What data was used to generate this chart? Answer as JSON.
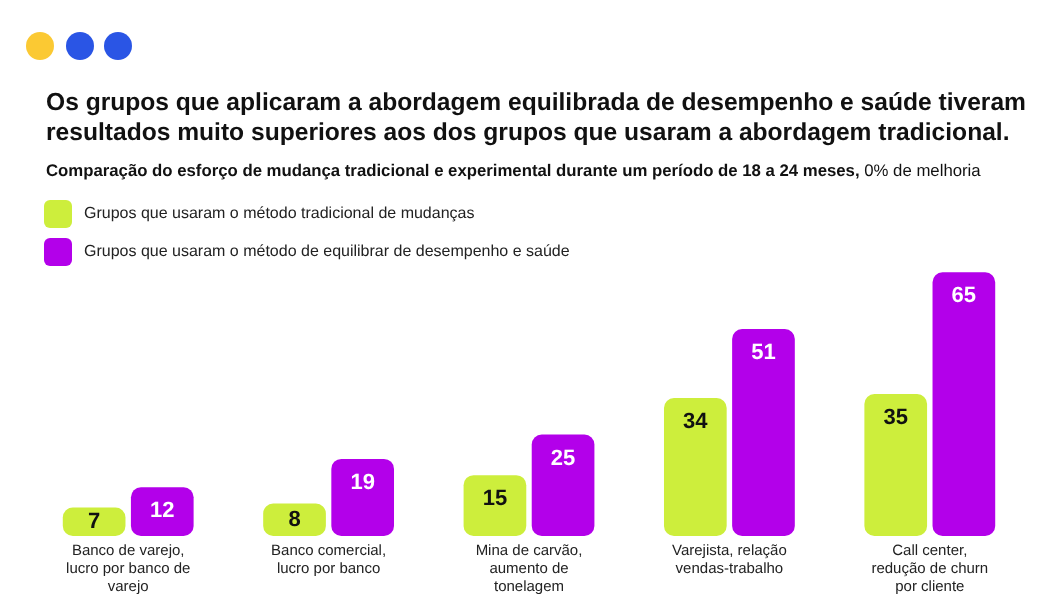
{
  "chart_data": {
    "type": "bar",
    "title": "Os grupos que aplicaram a abordagem equilibrada de desempenho e saúde tiveram resultados muito superiores aos dos grupos que usaram a abordagem tradicional.",
    "subtitle": "Comparação do esforço de mudança tradicional e experimental durante um período de 18 a 24 meses, 0% de melhoria",
    "categories": [
      "Banco de varejo, lucro por banco de varejo",
      "Banco comercial, lucro por banco",
      "Mina de carvão, aumento de tonelagem",
      "Varejista, relação vendas-trabalho",
      "Call center, redução de churn por cliente"
    ],
    "series": [
      {
        "name": "Grupos que usaram o método tradicional de mudanças",
        "color": "#cdee3c",
        "values": [
          7,
          8,
          15,
          34,
          35
        ]
      },
      {
        "name": "Grupos que usaram o método de equilibrar de desempenho e saúde",
        "color": "#b300ea",
        "values": [
          12,
          19,
          25,
          51,
          65
        ]
      }
    ],
    "data_labels": true,
    "legend": "top left",
    "grid": false
  }
}
